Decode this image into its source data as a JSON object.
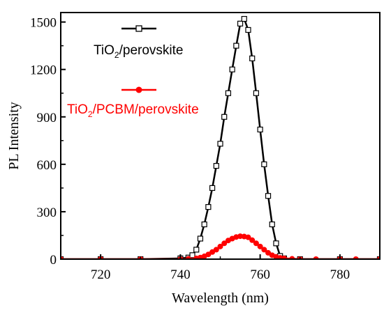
{
  "chart_data": {
    "type": "line",
    "xlabel": "Wavelength (nm)",
    "ylabel": "PL Intensity",
    "xlim": [
      710,
      790
    ],
    "ylim": [
      0,
      1560
    ],
    "xticks": [
      720,
      740,
      760,
      780
    ],
    "yticks": [
      0,
      300,
      600,
      900,
      1200,
      1500
    ],
    "xtick_labels": [
      "720",
      "740",
      "760",
      "780"
    ],
    "ytick_labels": [
      "0",
      "300",
      "600",
      "900",
      "1200",
      "1500"
    ],
    "grid": false,
    "legend_position": "top-left",
    "series": [
      {
        "name": "TiO2/perovskite",
        "legend_prefix": "TiO",
        "legend_sub": "2",
        "legend_suffix": "/perovskite",
        "color": "#000000",
        "marker": "open-square",
        "x": [
          710,
          720,
          730,
          740,
          742,
          743,
          744,
          745,
          746,
          747,
          748,
          749,
          750,
          751,
          752,
          753,
          754,
          755,
          756,
          757,
          758,
          759,
          760,
          761,
          762,
          763,
          764,
          765,
          766,
          770,
          780,
          790
        ],
        "y": [
          0,
          0,
          0,
          5,
          10,
          25,
          60,
          130,
          220,
          330,
          450,
          590,
          730,
          900,
          1050,
          1200,
          1350,
          1490,
          1520,
          1450,
          1270,
          1050,
          820,
          600,
          400,
          220,
          100,
          20,
          5,
          0,
          0,
          0
        ]
      },
      {
        "name": "TiO2/PCBM/perovskite",
        "legend_prefix": "TiO",
        "legend_sub": "2",
        "legend_suffix": "/PCBM/perovskite",
        "color": "#ff0000",
        "marker": "filled-circle",
        "x": [
          710,
          720,
          730,
          740,
          742,
          744,
          745,
          746,
          747,
          748,
          749,
          750,
          751,
          752,
          753,
          754,
          755,
          756,
          757,
          758,
          759,
          760,
          761,
          762,
          763,
          764,
          765,
          766,
          768,
          770,
          774,
          780,
          784,
          790
        ],
        "y": [
          0,
          0,
          0,
          0,
          2,
          5,
          10,
          18,
          30,
          45,
          60,
          80,
          100,
          118,
          130,
          140,
          145,
          143,
          138,
          120,
          100,
          80,
          60,
          40,
          25,
          15,
          8,
          5,
          2,
          0,
          0,
          0,
          0,
          0
        ]
      }
    ]
  },
  "colors": {
    "series1": "#000000",
    "series2": "#ff0000",
    "axis": "#000000",
    "background": "#ffffff"
  }
}
